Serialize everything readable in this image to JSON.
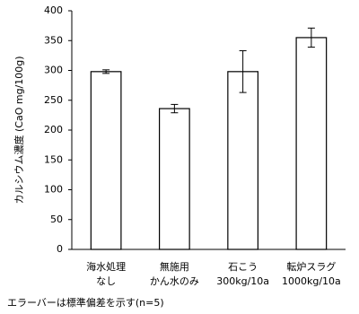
{
  "chart_data": {
    "type": "bar",
    "y_label": "カルシウム濃度 (CaO mg/100g)",
    "categories": [
      [
        "海水処理",
        "なし"
      ],
      [
        "無施用",
        "かん水のみ"
      ],
      [
        "石こう",
        "300kg/10a"
      ],
      [
        "転炉スラグ",
        "1000kg/10a"
      ]
    ],
    "values": [
      298,
      236,
      298,
      355
    ],
    "errors": [
      3,
      7,
      35,
      16
    ],
    "color": "#ffffff",
    "ylim": [
      0,
      400
    ],
    "yticks": [
      0,
      50,
      100,
      150,
      200,
      250,
      300,
      350,
      400
    ],
    "grid": false,
    "note": "エラーバーは標準偏差を示す(n=5)"
  }
}
